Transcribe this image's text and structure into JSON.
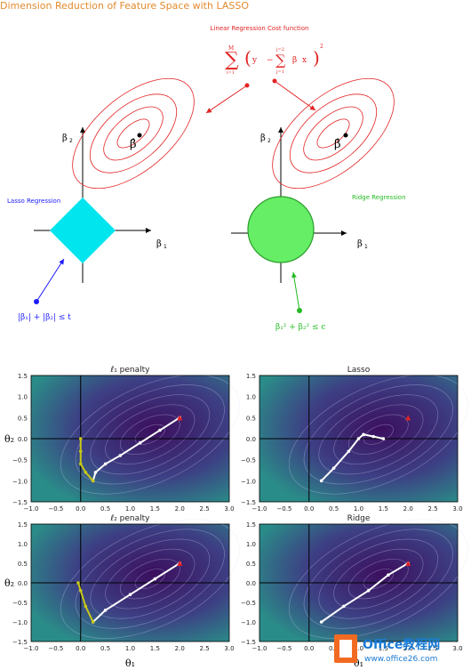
{
  "title": "Dimension Reduction of Feature Space with LASSO",
  "diagram": {
    "cost_label": "Linear Regression Cost function",
    "lasso_label": "Lasso Regression",
    "ridge_label": "Ridge Regression",
    "beta1": "β",
    "beta2": "β",
    "beta_hat": "β̂",
    "lasso_constraint": "|β₁| + |β₂| ≤ t",
    "ridge_constraint": "β₁² + β₂² ≤ c",
    "sum_formula": "Σ (yᵢ − Σ βⱼ xᵢⱼ)²",
    "sum_upper": "M",
    "sum_lower": "i=1",
    "inner_upper": "j=2",
    "inner_lower": "j=1"
  },
  "plots": [
    {
      "title": "ℓ₁ penalty",
      "ylabel": "θ₂"
    },
    {
      "title": "Lasso",
      "ylabel": ""
    },
    {
      "title": "ℓ₂ penalty",
      "ylabel": "θ₂",
      "xlabel": "θ₁"
    },
    {
      "title": "Ridge",
      "ylabel": "",
      "xlabel": "θ₁"
    }
  ],
  "axes": {
    "xticks": [
      "−1.0",
      "−0.5",
      "0.0",
      "0.5",
      "1.0",
      "1.5",
      "2.0",
      "2.5",
      "3.0"
    ],
    "yticks": [
      "1.5",
      "1.0",
      "0.5",
      "0.0",
      "−0.5",
      "−1.0",
      "−1.5"
    ]
  },
  "chart_data": [
    {
      "type": "line",
      "title": "ℓ₁ penalty",
      "xlim": [
        -1,
        3
      ],
      "ylim": [
        -1.5,
        1.5
      ],
      "series": [
        {
          "values": [
            [
              2.0,
              0.5
            ],
            [
              1.6,
              0.2
            ],
            [
              1.2,
              -0.1
            ],
            [
              0.8,
              -0.4
            ],
            [
              0.5,
              -0.6
            ],
            [
              0.3,
              -0.8
            ],
            [
              0.25,
              -1.0
            ]
          ]
        },
        {
          "values": [
            [
              0.25,
              -1.0
            ],
            [
              0.1,
              -0.8
            ],
            [
              0.0,
              -0.6
            ],
            [
              0.0,
              -0.3
            ],
            [
              0.0,
              0.0
            ]
          ]
        }
      ]
    },
    {
      "type": "line",
      "title": "Lasso",
      "xlim": [
        -1,
        3
      ],
      "ylim": [
        -1.5,
        1.5
      ],
      "series": [
        {
          "values": [
            [
              0.25,
              -1.0
            ],
            [
              0.5,
              -0.7
            ],
            [
              0.8,
              -0.3
            ],
            [
              1.0,
              0.0
            ],
            [
              1.1,
              0.1
            ],
            [
              1.3,
              0.05
            ],
            [
              1.5,
              0.0
            ]
          ]
        }
      ]
    },
    {
      "type": "line",
      "title": "ℓ₂ penalty",
      "xlim": [
        -1,
        3
      ],
      "ylim": [
        -1.5,
        1.5
      ],
      "series": [
        {
          "values": [
            [
              2.0,
              0.5
            ],
            [
              1.5,
              0.1
            ],
            [
              1.0,
              -0.3
            ],
            [
              0.5,
              -0.7
            ],
            [
              0.25,
              -1.0
            ]
          ]
        },
        {
          "values": [
            [
              0.25,
              -1.0
            ],
            [
              0.1,
              -0.6
            ],
            [
              0.0,
              -0.2
            ],
            [
              -0.05,
              0.0
            ]
          ]
        }
      ]
    },
    {
      "type": "line",
      "title": "Ridge",
      "xlim": [
        -1,
        3
      ],
      "ylim": [
        -1.5,
        1.5
      ],
      "series": [
        {
          "values": [
            [
              0.25,
              -1.0
            ],
            [
              0.7,
              -0.6
            ],
            [
              1.2,
              -0.2
            ],
            [
              1.6,
              0.2
            ],
            [
              2.0,
              0.5
            ]
          ]
        }
      ]
    }
  ],
  "colors": {
    "title": "#e38a2e",
    "cost": "#e32222",
    "lasso": "#1a1aff",
    "ridge": "#22bb22",
    "cyan": "#00e5ee",
    "green_fill": "#66ee66"
  }
}
